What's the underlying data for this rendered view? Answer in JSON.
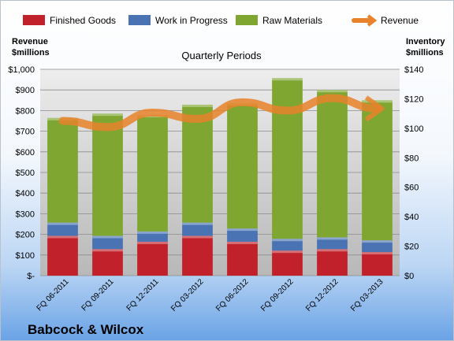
{
  "chart_data": {
    "type": "bar",
    "stacked": true,
    "title": "Quarterly Periods",
    "company": "Babcock & Wilcox",
    "categories": [
      "FQ 06-2011",
      "FQ 09-2011",
      "FQ 12-2011",
      "FQ 03-2012",
      "FQ 06-2012",
      "FQ 09-2012",
      "FQ 12-2012",
      "FQ 03-2013"
    ],
    "series": [
      {
        "name": "Finished Goods",
        "axis": "right",
        "color": "#c0212a",
        "values": [
          27,
          18,
          23,
          27,
          23,
          17,
          18,
          16
        ]
      },
      {
        "name": "Work in Progress",
        "axis": "right",
        "color": "#4a73b3",
        "values": [
          9,
          9,
          7,
          9,
          9,
          8,
          8,
          8
        ]
      },
      {
        "name": "Raw Materials",
        "axis": "right",
        "color": "#7fa631",
        "values": [
          71,
          83,
          79,
          80,
          85,
          109,
          100,
          95
        ]
      },
      {
        "name": "Revenue",
        "axis": "left",
        "type": "line",
        "color": "#e8832b",
        "values": [
          750,
          720,
          790,
          760,
          840,
          800,
          860,
          810
        ]
      }
    ],
    "y_left": {
      "label": "Revenue\n$millions",
      "min": 0,
      "max": 1000,
      "ticks": [
        "$-",
        "$100",
        "$200",
        "$300",
        "$400",
        "$500",
        "$600",
        "$700",
        "$800",
        "$900",
        "$1,000"
      ]
    },
    "y_right": {
      "label": "Inventory\n$millions",
      "min": 0,
      "max": 140,
      "ticks": [
        "$0",
        "$20",
        "$40",
        "$60",
        "$80",
        "$100",
        "$120",
        "$140"
      ]
    },
    "legend_position": "top",
    "grid": true
  }
}
